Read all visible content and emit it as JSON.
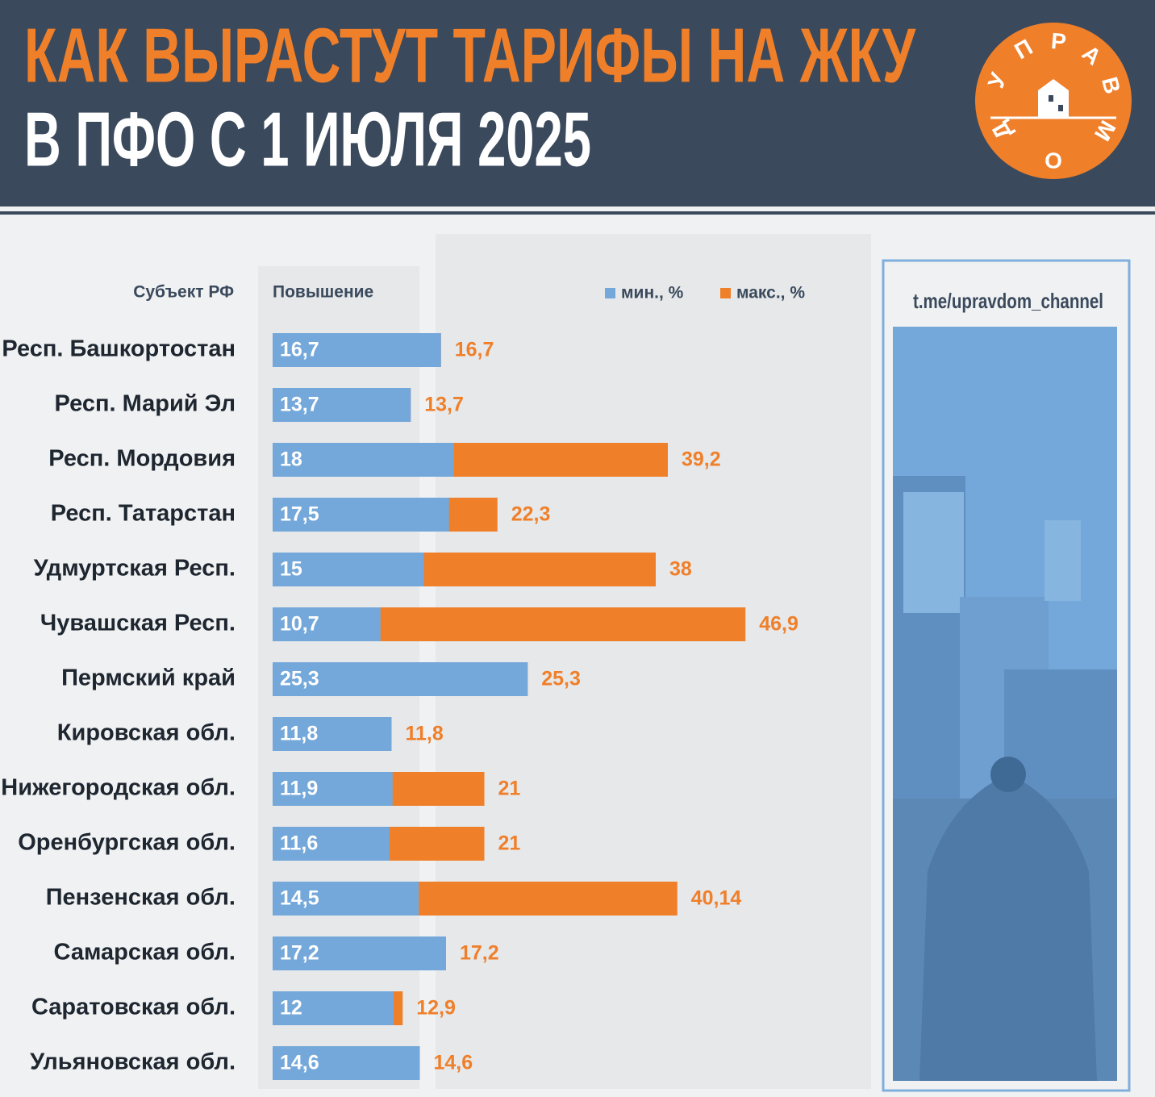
{
  "chart_data": {
    "type": "bar",
    "orientation": "horizontal",
    "title": [
      "КАК ВЫРАСТУТ ТАРИФЫ НА ЖКУ",
      "В ПФО С 1 ИЮЛЯ 2025"
    ],
    "category_header": "Субъект РФ",
    "value_header": "Повышение",
    "link": "t.me/upravdom_channel",
    "logo_letters": [
      "У",
      "П",
      "Р",
      "А",
      "В",
      "Д",
      "О",
      "М"
    ],
    "categories": [
      "Респ. Башкортостан",
      "Респ. Марий Эл",
      "Респ. Мордовия",
      "Респ. Татарстан",
      "Удмуртская Респ.",
      "Чувашская Респ.",
      "Пермский край",
      "Кировская обл.",
      "Нижегородская обл.",
      "Оренбургская обл.",
      "Пензенская обл.",
      "Самарская обл.",
      "Саратовская обл.",
      "Ульяновская обл."
    ],
    "series": [
      {
        "name": "мин., %",
        "color": "#74a8da",
        "values": [
          16.7,
          13.7,
          18,
          17.5,
          15,
          10.7,
          25.3,
          11.8,
          11.9,
          11.6,
          14.5,
          17.2,
          12,
          14.6
        ],
        "value_labels": [
          "16,7",
          "13,7",
          "18",
          "17,5",
          "15",
          "10,7",
          "25,3",
          "11,8",
          "11,9",
          "11,6",
          "14,5",
          "17,2",
          "12",
          "14,6"
        ]
      },
      {
        "name": "макс., %",
        "color": "#f07f2a",
        "values": [
          16.7,
          13.7,
          39.2,
          22.3,
          38,
          46.9,
          25.3,
          11.8,
          21,
          21,
          40.14,
          17.2,
          12.9,
          14.6
        ],
        "value_labels": [
          "16,7",
          "13,7",
          "39,2",
          "22,3",
          "38",
          "46,9",
          "25,3",
          "11,8",
          "21",
          "21",
          "40,14",
          "17,2",
          "12,9",
          "14,6"
        ]
      }
    ]
  }
}
